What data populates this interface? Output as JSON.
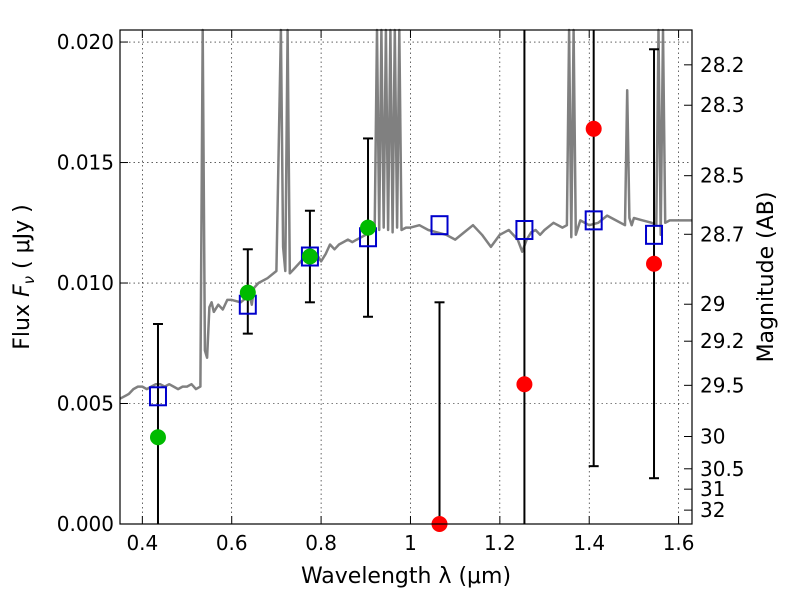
{
  "chart_data": {
    "type": "scatter",
    "title": "",
    "xlabel": "Wavelength  λ (μm)",
    "ylabel": "Flux  F_ν  ( μJy )",
    "ylabel_parts": {
      "pre": "Flux  ",
      "var": "F",
      "sub": "ν",
      "post": "  ( μJy )"
    },
    "y2label": "Magnitude (AB)",
    "xlim": [
      0.35,
      1.63
    ],
    "ylim": [
      0.0,
      0.0205
    ],
    "grid": true,
    "grid_style": "dotted",
    "colors": {
      "spectrum": "#808080",
      "boxes": "#0000cc",
      "detections": "#00bb00",
      "limits": "#ff0000",
      "errorbars": "#000000"
    },
    "x_ticks": [
      "0.4",
      "0.6",
      "0.8",
      "1",
      "1.2",
      "1.4",
      "1.6"
    ],
    "x_tick_values": [
      0.4,
      0.6,
      0.8,
      1.0,
      1.2,
      1.4,
      1.6
    ],
    "y_ticks": [
      "0.000",
      "0.005",
      "0.010",
      "0.015",
      "0.020"
    ],
    "y_tick_values": [
      0.0,
      0.005,
      0.01,
      0.015,
      0.02
    ],
    "mag_ticks": [
      "28.2",
      "28.3",
      "28.5",
      "28.7",
      "29",
      "29.2",
      "29.5",
      "30",
      "30.5",
      "31",
      "32"
    ],
    "mag_tick_values": [
      28.2,
      28.3,
      28.5,
      28.7,
      29.0,
      29.2,
      29.5,
      30.0,
      30.5,
      31.0,
      32.0
    ],
    "spectrum": {
      "x": [
        0.35,
        0.36,
        0.37,
        0.38,
        0.39,
        0.4,
        0.41,
        0.42,
        0.43,
        0.44,
        0.45,
        0.46,
        0.47,
        0.48,
        0.49,
        0.5,
        0.51,
        0.52,
        0.53,
        0.535,
        0.54,
        0.545,
        0.55,
        0.555,
        0.56,
        0.57,
        0.58,
        0.59,
        0.6,
        0.62,
        0.64,
        0.645,
        0.65,
        0.66,
        0.68,
        0.7,
        0.71,
        0.715,
        0.72,
        0.725,
        0.73,
        0.74,
        0.75,
        0.76,
        0.77,
        0.78,
        0.79,
        0.8,
        0.81,
        0.82,
        0.83,
        0.84,
        0.85,
        0.86,
        0.87,
        0.88,
        0.89,
        0.9,
        0.91,
        0.92,
        0.925,
        0.93,
        0.935,
        0.94,
        0.945,
        0.95,
        0.955,
        0.96,
        0.965,
        0.97,
        0.975,
        0.98,
        0.99,
        1.0,
        1.02,
        1.04,
        1.06,
        1.08,
        1.1,
        1.12,
        1.14,
        1.16,
        1.18,
        1.2,
        1.22,
        1.24,
        1.25,
        1.26,
        1.27,
        1.28,
        1.29,
        1.3,
        1.32,
        1.34,
        1.35,
        1.355,
        1.36,
        1.365,
        1.37,
        1.38,
        1.4,
        1.42,
        1.44,
        1.46,
        1.48,
        1.485,
        1.49,
        1.495,
        1.5,
        1.52,
        1.54,
        1.55,
        1.555,
        1.56,
        1.565,
        1.57,
        1.58,
        1.6,
        1.62,
        1.63
      ],
      "y": [
        0.0052,
        0.0053,
        0.0054,
        0.0056,
        0.0057,
        0.0057,
        0.0056,
        0.0057,
        0.0058,
        0.0058,
        0.0057,
        0.0058,
        0.0057,
        0.0056,
        0.0057,
        0.0057,
        0.0058,
        0.0056,
        0.0057,
        0.021,
        0.0072,
        0.0069,
        0.009,
        0.0092,
        0.0088,
        0.0091,
        0.0089,
        0.0093,
        0.0093,
        0.0092,
        0.0095,
        0.0091,
        0.0098,
        0.01,
        0.0102,
        0.0105,
        0.021,
        0.0115,
        0.0105,
        0.021,
        0.0104,
        0.0106,
        0.0108,
        0.011,
        0.0109,
        0.0112,
        0.0112,
        0.0109,
        0.0112,
        0.0116,
        0.0114,
        0.0116,
        0.0117,
        0.0118,
        0.0117,
        0.0118,
        0.0119,
        0.012,
        0.0121,
        0.0123,
        0.021,
        0.0122,
        0.021,
        0.0123,
        0.021,
        0.0122,
        0.021,
        0.0121,
        0.021,
        0.0123,
        0.021,
        0.0122,
        0.0123,
        0.0123,
        0.0124,
        0.0122,
        0.0121,
        0.012,
        0.0118,
        0.0121,
        0.0124,
        0.012,
        0.0115,
        0.012,
        0.0122,
        0.0118,
        0.0113,
        0.0118,
        0.0121,
        0.0122,
        0.012,
        0.0122,
        0.0125,
        0.0123,
        0.0124,
        0.021,
        0.0119,
        0.021,
        0.012,
        0.0126,
        0.0124,
        0.0125,
        0.0128,
        0.0126,
        0.0124,
        0.018,
        0.0127,
        0.0124,
        0.0127,
        0.0126,
        0.0125,
        0.0124,
        0.021,
        0.012,
        0.021,
        0.0125,
        0.0126,
        0.0126,
        0.0126,
        0.0126
      ]
    },
    "series": [
      {
        "marker": "open-square",
        "x": [
          0.435,
          0.636,
          0.775,
          0.905,
          1.065,
          1.255,
          1.41,
          1.545
        ],
        "y": [
          0.0053,
          0.0091,
          0.0111,
          0.0119,
          0.0124,
          0.0122,
          0.0126,
          0.012
        ]
      },
      {
        "marker": "filled-circle",
        "x": [
          0.435,
          0.636,
          0.775,
          0.905
        ],
        "y": [
          0.0036,
          0.0096,
          0.0111,
          0.0123
        ],
        "err_low": [
          0.0,
          0.0079,
          0.0092,
          0.0086
        ],
        "err_high": [
          0.0083,
          0.0114,
          0.013,
          0.016
        ]
      },
      {
        "marker": "filled-circle",
        "x": [
          1.065,
          1.255,
          1.41,
          1.545
        ],
        "y": [
          0.0,
          0.0058,
          0.0164,
          0.0108
        ],
        "err_low": [
          0.0,
          0.0,
          0.0024,
          0.0019
        ],
        "err_high": [
          0.0092,
          0.021,
          0.021,
          0.0197
        ]
      }
    ]
  }
}
